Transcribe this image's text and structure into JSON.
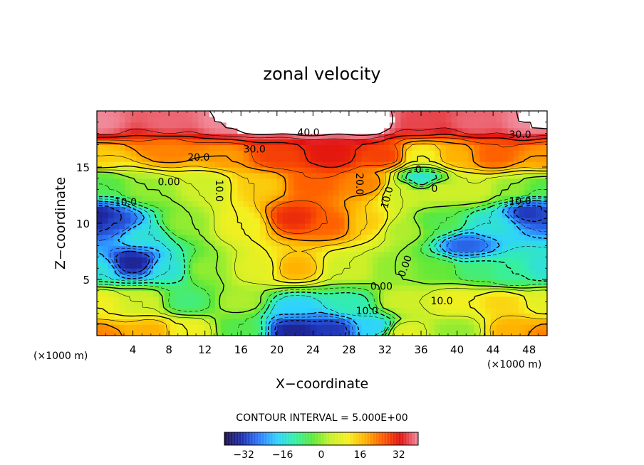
{
  "chart_data": {
    "type": "heatmap",
    "title": "zonal velocity",
    "xlabel": "X−coordinate",
    "ylabel": "Z−coordinate",
    "x_unit_left": "(×1000 m)",
    "x_unit_right": "(×1000 m)",
    "xlim": [
      0,
      50
    ],
    "ylim": [
      0,
      20
    ],
    "x_ticks": [
      4,
      8,
      12,
      16,
      20,
      24,
      28,
      32,
      36,
      40,
      44,
      48
    ],
    "x_tick_labels": [
      "4",
      "8",
      "12",
      "16",
      "20",
      "24",
      "28",
      "32",
      "36",
      "40",
      "44",
      "48"
    ],
    "y_ticks": [
      5,
      10,
      15
    ],
    "y_tick_labels": [
      "5",
      "10",
      "15"
    ],
    "contour_interval_label": "CONTOUR INTERVAL = 5.000E+00",
    "colorbar": {
      "min": -40,
      "max": 40,
      "ticks": [
        -32,
        -16,
        0,
        16,
        32
      ],
      "tick_labels": [
        "−32",
        "−16",
        "0",
        "16",
        "32"
      ],
      "colors": [
        "#1e0f4a",
        "#1f2fb0",
        "#2f7dff",
        "#2fd2ff",
        "#33f0a6",
        "#5ce83a",
        "#c6f02a",
        "#f6f020",
        "#ffb000",
        "#ff5a00",
        "#e01010",
        "#f08a9a"
      ]
    },
    "field_anchors": [
      {
        "x": 0,
        "z": 0,
        "u": 22
      },
      {
        "x": 6,
        "z": 0.5,
        "u": 18
      },
      {
        "x": 10,
        "z": 0.5,
        "u": 10
      },
      {
        "x": 16,
        "z": 0.6,
        "u": -5
      },
      {
        "x": 22,
        "z": 0.6,
        "u": -35
      },
      {
        "x": 26,
        "z": 0.6,
        "u": -32
      },
      {
        "x": 31,
        "z": 0.8,
        "u": -18
      },
      {
        "x": 34,
        "z": 0.4,
        "u": 8
      },
      {
        "x": 40,
        "z": 0.5,
        "u": 0
      },
      {
        "x": 46,
        "z": 0.5,
        "u": 18
      },
      {
        "x": 50,
        "z": 0,
        "u": 22
      },
      {
        "x": 0,
        "z": 3,
        "u": 10
      },
      {
        "x": 5,
        "z": 3,
        "u": 5
      },
      {
        "x": 10,
        "z": 3,
        "u": -8
      },
      {
        "x": 16,
        "z": 3,
        "u": 2
      },
      {
        "x": 22,
        "z": 2.5,
        "u": -18
      },
      {
        "x": 28,
        "z": 2.8,
        "u": -12
      },
      {
        "x": 34,
        "z": 3,
        "u": 5
      },
      {
        "x": 40,
        "z": 3,
        "u": 10
      },
      {
        "x": 45,
        "z": 3,
        "u": 14
      },
      {
        "x": 50,
        "z": 3,
        "u": 8
      },
      {
        "x": 0,
        "z": 6,
        "u": -15
      },
      {
        "x": 4,
        "z": 6.5,
        "u": -35
      },
      {
        "x": 8,
        "z": 6,
        "u": -15
      },
      {
        "x": 12,
        "z": 6,
        "u": 0
      },
      {
        "x": 18,
        "z": 6,
        "u": 8
      },
      {
        "x": 22,
        "z": 6,
        "u": 18
      },
      {
        "x": 28,
        "z": 6,
        "u": 5
      },
      {
        "x": 33,
        "z": 6,
        "u": 0
      },
      {
        "x": 38,
        "z": 6,
        "u": -3
      },
      {
        "x": 42,
        "z": 6,
        "u": -8
      },
      {
        "x": 46,
        "z": 5.5,
        "u": -10
      },
      {
        "x": 50,
        "z": 6,
        "u": -15
      },
      {
        "x": 0,
        "z": 10.5,
        "u": -35
      },
      {
        "x": 2,
        "z": 10,
        "u": -30
      },
      {
        "x": 5,
        "z": 9,
        "u": -15
      },
      {
        "x": 10,
        "z": 10,
        "u": 0
      },
      {
        "x": 16,
        "z": 10,
        "u": 10
      },
      {
        "x": 22,
        "z": 10.5,
        "u": 30
      },
      {
        "x": 26,
        "z": 10,
        "u": 25
      },
      {
        "x": 30,
        "z": 10,
        "u": 15
      },
      {
        "x": 34,
        "z": 9.5,
        "u": 2
      },
      {
        "x": 38,
        "z": 10,
        "u": -5
      },
      {
        "x": 41,
        "z": 8,
        "u": -28
      },
      {
        "x": 44,
        "z": 10,
        "u": -15
      },
      {
        "x": 48,
        "z": 11,
        "u": -32
      },
      {
        "x": 50,
        "z": 11,
        "u": -30
      },
      {
        "x": 0,
        "z": 13.5,
        "u": -5
      },
      {
        "x": 6,
        "z": 13,
        "u": 0
      },
      {
        "x": 12,
        "z": 13.5,
        "u": 5
      },
      {
        "x": 18,
        "z": 13.5,
        "u": 15
      },
      {
        "x": 24,
        "z": 13.5,
        "u": 25
      },
      {
        "x": 30,
        "z": 13.5,
        "u": 22
      },
      {
        "x": 34,
        "z": 13,
        "u": 5
      },
      {
        "x": 36,
        "z": 14,
        "u": -15
      },
      {
        "x": 38,
        "z": 13,
        "u": 5
      },
      {
        "x": 42,
        "z": 13,
        "u": 5
      },
      {
        "x": 46,
        "z": 13,
        "u": 0
      },
      {
        "x": 50,
        "z": 13,
        "u": -5
      },
      {
        "x": 0,
        "z": 16,
        "u": 15
      },
      {
        "x": 8,
        "z": 16.5,
        "u": 22
      },
      {
        "x": 14,
        "z": 16,
        "u": 20
      },
      {
        "x": 20,
        "z": 16,
        "u": 28
      },
      {
        "x": 26,
        "z": 16,
        "u": 32
      },
      {
        "x": 32,
        "z": 16,
        "u": 28
      },
      {
        "x": 36,
        "z": 16,
        "u": 10
      },
      {
        "x": 40,
        "z": 16,
        "u": 18
      },
      {
        "x": 44,
        "z": 16,
        "u": 25
      },
      {
        "x": 50,
        "z": 16,
        "u": 20
      },
      {
        "x": 0,
        "z": 19,
        "u": 40
      },
      {
        "x": 8,
        "z": 19,
        "u": 38
      },
      {
        "x": 14,
        "z": 19,
        "u": 40
      },
      {
        "x": 18,
        "z": 19.5,
        "u": 50
      },
      {
        "x": 24,
        "z": 19.5,
        "u": 50
      },
      {
        "x": 30,
        "z": 19,
        "u": 44
      },
      {
        "x": 36,
        "z": 19,
        "u": 36
      },
      {
        "x": 42,
        "z": 19,
        "u": 38
      },
      {
        "x": 48,
        "z": 19,
        "u": 40
      },
      {
        "x": 50,
        "z": 19.5,
        "u": 42
      }
    ],
    "contour_labels": [
      {
        "text": "40.0",
        "x": 23.5,
        "z": 18.1,
        "angle": 0
      },
      {
        "text": "30.0",
        "x": 17.5,
        "z": 16.6,
        "angle": 0
      },
      {
        "text": "30.0",
        "x": 47.0,
        "z": 17.9,
        "angle": 0
      },
      {
        "text": "20.0",
        "x": 11.3,
        "z": 15.9,
        "angle": 0
      },
      {
        "text": "0.00",
        "x": 8.0,
        "z": 13.7,
        "angle": 0
      },
      {
        "text": "10.0",
        "x": 3.2,
        "z": 11.9,
        "angle": 0
      },
      {
        "text": "10.0",
        "x": 13.6,
        "z": 12.9,
        "angle": 90
      },
      {
        "text": "20.0",
        "x": 29.2,
        "z": 13.5,
        "angle": 90
      },
      {
        "text": "10.0",
        "x": 32.2,
        "z": 12.3,
        "angle": -75
      },
      {
        "text": "0",
        "x": 35.7,
        "z": 14.8,
        "angle": 0
      },
      {
        "text": "0",
        "x": 37.5,
        "z": 13.1,
        "angle": 0
      },
      {
        "text": "10.0",
        "x": 47.0,
        "z": 12.0,
        "angle": 0
      },
      {
        "text": "0.00",
        "x": 34.2,
        "z": 6.2,
        "angle": -70
      },
      {
        "text": "0.00",
        "x": 31.6,
        "z": 4.4,
        "angle": 0
      },
      {
        "text": "10.0",
        "x": 30.0,
        "z": 2.2,
        "angle": 0
      },
      {
        "text": "10.0",
        "x": 38.3,
        "z": 3.1,
        "angle": 0
      }
    ]
  }
}
